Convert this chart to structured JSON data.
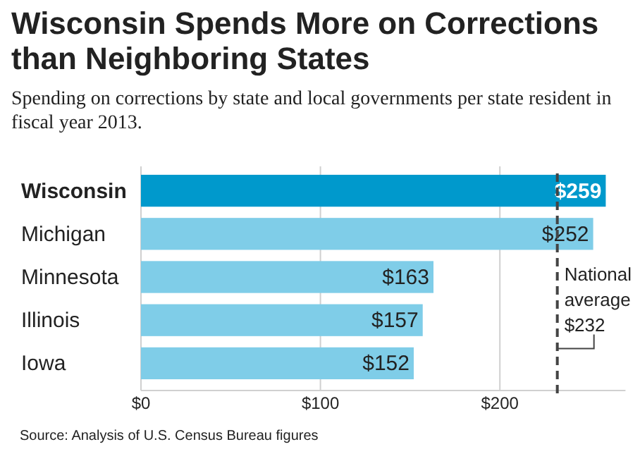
{
  "chart_data": {
    "type": "bar",
    "orientation": "horizontal",
    "title": "Wisconsin Spends More on Corrections than Neighboring States",
    "subtitle": "Spending on corrections by state and local governments per state resident in fiscal year 2013.",
    "categories": [
      "Wisconsin",
      "Michigan",
      "Minnesota",
      "Illinois",
      "Iowa"
    ],
    "values": [
      259,
      252,
      163,
      157,
      152
    ],
    "colors": [
      "#0099cc",
      "#7fcde8",
      "#7fcde8",
      "#7fcde8",
      "#7fcde8"
    ],
    "value_labels": [
      "$259",
      "$252",
      "$163",
      "$157",
      "$152"
    ],
    "xlim": [
      0,
      270
    ],
    "xticks": [
      {
        "value": 0,
        "label": "$0"
      },
      {
        "value": 100,
        "label": "$100"
      },
      {
        "value": 200,
        "label": "$200"
      }
    ],
    "grid": "x",
    "ref_lines": [
      {
        "axis": "x",
        "value": 232,
        "label": "National average $232",
        "color": "#444444",
        "line_style": "dashed"
      }
    ],
    "annotations": [
      "Source: Analysis of U.S. Census Bureau figures"
    ]
  }
}
